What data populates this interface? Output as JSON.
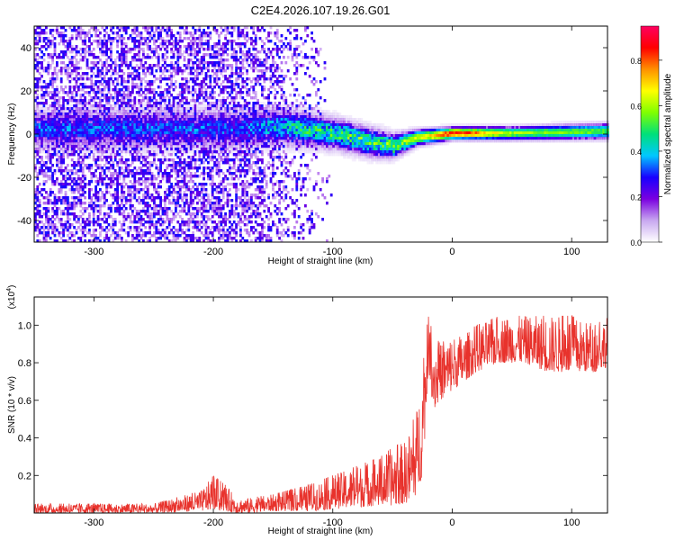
{
  "figure_title": "C2E4.2026.107.19.26.G01",
  "chart_data": [
    {
      "type": "heatmap",
      "title": "C2E4.2026.107.19.26.G01",
      "xlabel": "Height of straight line (km)",
      "ylabel": "Frequency (Hz)",
      "xlim": [
        -350,
        130
      ],
      "ylim": [
        -50,
        50
      ],
      "xticks": [
        -300,
        -200,
        -100,
        0,
        100
      ],
      "yticks": [
        -40,
        -20,
        0,
        20,
        40
      ],
      "colorbar": {
        "label": "Normalized spectral amplitude",
        "range": [
          0,
          0.95
        ],
        "ticks": [
          0.0,
          0.2,
          0.4,
          0.6,
          0.8
        ],
        "colors": [
          "#ffffff",
          "#c8a8f0",
          "#7a00e0",
          "#1800ff",
          "#00c8ff",
          "#00e07a",
          "#80ff00",
          "#ffff00",
          "#ff9000",
          "#ff0000",
          "#ff0060"
        ]
      },
      "description_points": {
        "noise_region_km": [
          -350,
          -170
        ],
        "signal_center_hz": [
          [
            -180,
            3
          ],
          [
            -140,
            4
          ],
          [
            -100,
            1
          ],
          [
            -70,
            -3
          ],
          [
            -50,
            -5
          ],
          [
            -30,
            -1
          ],
          [
            0,
            1
          ],
          [
            50,
            1
          ],
          [
            130,
            2
          ]
        ],
        "band_halfwidth_hz": [
          [
            -180,
            10
          ],
          [
            -100,
            8
          ],
          [
            -60,
            7
          ],
          [
            -30,
            4
          ],
          [
            0,
            3
          ],
          [
            130,
            4
          ]
        ],
        "peak_amplitude": [
          [
            -180,
            0.3
          ],
          [
            -120,
            0.45
          ],
          [
            -60,
            0.5
          ],
          [
            -20,
            0.7
          ],
          [
            0,
            0.9
          ],
          [
            50,
            0.6
          ],
          [
            130,
            0.55
          ]
        ]
      }
    },
    {
      "type": "line",
      "title": "",
      "xlabel": "Height of straight line (km)",
      "ylabel": "SNR (10 * v/v)",
      "y_multiplier_label": "(x10",
      "y_multiplier_exp": "4",
      "y_multiplier_close": ")",
      "xlim": [
        -350,
        130
      ],
      "ylim": [
        0,
        1.15
      ],
      "xticks": [
        -300,
        -200,
        -100,
        0,
        100
      ],
      "yticks": [
        0.2,
        0.4,
        0.6,
        0.8,
        1.0
      ],
      "series": [
        {
          "name": "SNR",
          "color": "#e8322c",
          "envelope_x": [
            -350,
            -250,
            -210,
            -200,
            -190,
            -180,
            -170,
            -150,
            -120,
            -100,
            -80,
            -60,
            -50,
            -40,
            -35,
            -30,
            -25,
            -22,
            -20,
            -18,
            -15,
            -10,
            0,
            10,
            20,
            40,
            60,
            80,
            100,
            120,
            130
          ],
          "envelope_lo": [
            0.0,
            0.0,
            0.01,
            0.02,
            0.01,
            0.0,
            0.0,
            0.01,
            0.01,
            0.02,
            0.03,
            0.04,
            0.04,
            0.05,
            0.06,
            0.1,
            0.2,
            0.5,
            0.8,
            0.65,
            0.55,
            0.6,
            0.65,
            0.7,
            0.75,
            0.8,
            0.8,
            0.75,
            0.75,
            0.75,
            0.78
          ],
          "envelope_hi": [
            0.05,
            0.05,
            0.12,
            0.2,
            0.15,
            0.08,
            0.08,
            0.1,
            0.15,
            0.2,
            0.25,
            0.3,
            0.35,
            0.38,
            0.45,
            0.55,
            0.75,
            0.95,
            1.05,
            1.0,
            0.95,
            0.9,
            0.95,
            0.95,
            1.0,
            1.05,
            1.05,
            1.05,
            1.05,
            1.0,
            1.05
          ]
        }
      ]
    }
  ]
}
